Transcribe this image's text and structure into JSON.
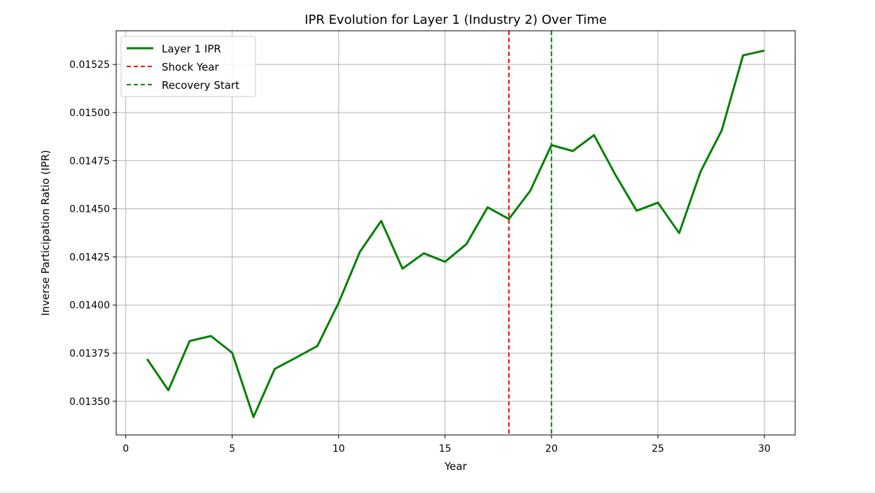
{
  "chart_data": {
    "type": "line",
    "title": "IPR Evolution for Layer 1 (Industry 2) Over Time",
    "xlabel": "Year",
    "ylabel": "Inverse Participation Ratio (IPR)",
    "xlim": [
      -0.45,
      31.45
    ],
    "ylim": [
      0.013325,
      0.015425
    ],
    "x_ticks": [
      0,
      5,
      10,
      15,
      20,
      25,
      30
    ],
    "x_tick_labels": [
      "0",
      "5",
      "10",
      "15",
      "20",
      "25",
      "30"
    ],
    "y_ticks": [
      0.0135,
      0.01375,
      0.014,
      0.01425,
      0.0145,
      0.01475,
      0.015,
      0.01525
    ],
    "y_tick_labels": [
      "0.01350",
      "0.01375",
      "0.01400",
      "0.01425",
      "0.01450",
      "0.01475",
      "0.01500",
      "0.01525"
    ],
    "grid": true,
    "legend_position": "upper-left",
    "series": [
      {
        "name": "Layer 1 IPR",
        "color": "#008000",
        "x": [
          1,
          2,
          3,
          4,
          5,
          6,
          7,
          8,
          9,
          10,
          11,
          12,
          13,
          14,
          15,
          16,
          17,
          18,
          19,
          20,
          21,
          22,
          23,
          24,
          25,
          26,
          27,
          28,
          29,
          30
        ],
        "y": [
          0.01372,
          0.013557,
          0.013813,
          0.013839,
          0.013752,
          0.013418,
          0.013668,
          0.013727,
          0.013787,
          0.014012,
          0.014277,
          0.014437,
          0.014189,
          0.014269,
          0.014225,
          0.014316,
          0.014508,
          0.014447,
          0.014593,
          0.014831,
          0.0148,
          0.014883,
          0.014677,
          0.01449,
          0.014532,
          0.014374,
          0.014692,
          0.014908,
          0.015297,
          0.015322
        ]
      }
    ],
    "vlines": [
      {
        "name": "Shock Year",
        "x": 18,
        "color": "#ff0000",
        "style": "dashed"
      },
      {
        "name": "Recovery Start",
        "x": 20,
        "color": "#008000",
        "style": "dashed"
      }
    ]
  }
}
